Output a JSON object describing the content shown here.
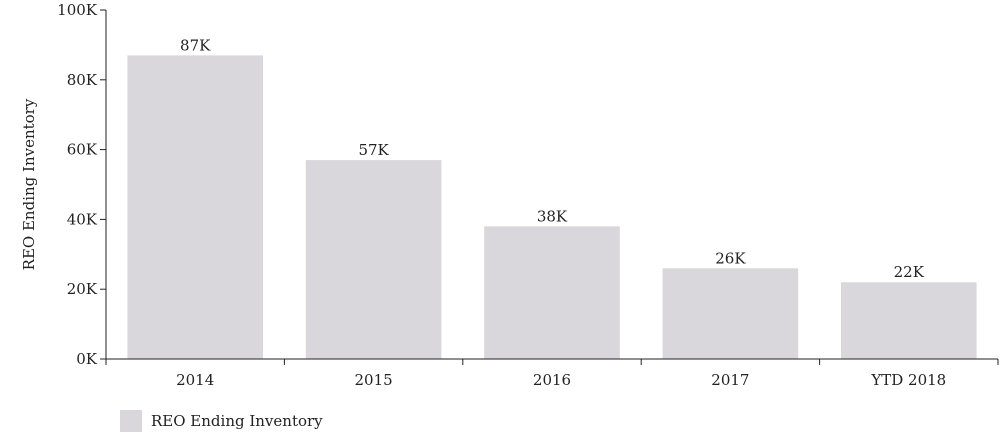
{
  "chart_data": {
    "type": "bar",
    "categories": [
      "2014",
      "2015",
      "2016",
      "2017",
      "YTD 2018"
    ],
    "series": [
      {
        "name": "REO Ending Inventory",
        "values": [
          87,
          57,
          38,
          26,
          22
        ]
      }
    ],
    "data_labels": [
      "87K",
      "57K",
      "38K",
      "26K",
      "22K"
    ],
    "y_ticks": [
      0,
      20,
      40,
      60,
      80,
      100
    ],
    "y_tick_labels": [
      "0K",
      "20K",
      "40K",
      "60K",
      "80K",
      "100K"
    ],
    "ylabel": "REO Ending Inventory",
    "xlabel": "",
    "ylim": [
      0,
      100
    ],
    "grid": false,
    "legend_placement": "bottom-left",
    "bar_color": "#d9d7dc",
    "axis_color": "#222222"
  }
}
